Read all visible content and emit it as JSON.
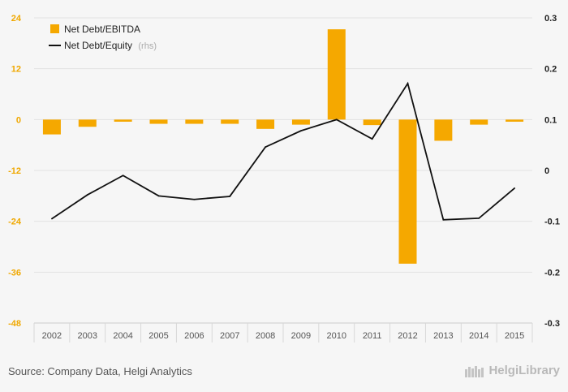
{
  "chart_data": {
    "type": "bar+line",
    "categories": [
      "2002",
      "2003",
      "2004",
      "2005",
      "2006",
      "2007",
      "2008",
      "2009",
      "2010",
      "2011",
      "2012",
      "2013",
      "2014",
      "2015"
    ],
    "series": [
      {
        "name": "Net Debt/EBITDA",
        "axis": "left",
        "kind": "bar",
        "values": [
          -3.5,
          -1.7,
          -0.5,
          -1.0,
          -1.0,
          -1.0,
          -2.2,
          -1.2,
          21.3,
          -1.3,
          -34.0,
          -5.0,
          -1.2,
          -0.5
        ]
      },
      {
        "name": "Net Debt/Equity",
        "axis": "right",
        "kind": "line",
        "values": [
          -0.095,
          -0.048,
          -0.01,
          -0.05,
          -0.057,
          -0.051,
          0.046,
          0.078,
          0.1,
          0.062,
          0.171,
          -0.097,
          -0.094,
          -0.035
        ]
      }
    ],
    "left_axis": {
      "ticks": [
        "24",
        "12",
        "0",
        "-12",
        "-24",
        "-36",
        "-48"
      ],
      "range": [
        -48,
        24
      ]
    },
    "right_axis": {
      "ticks": [
        "0.3",
        "0.2",
        "0.1",
        "0",
        "-0.1",
        "-0.2",
        "-0.3"
      ],
      "range": [
        -0.3,
        0.3
      ]
    },
    "legend": {
      "position": "top-left",
      "rhs_note": "(rhs)"
    },
    "colors": {
      "bar": "#f5a800",
      "line": "#111111",
      "left_tick": "#f0a800"
    }
  },
  "footer": {
    "source": "Source: Company Data, Helgi Analytics",
    "brand": "HelgiLibrary"
  }
}
